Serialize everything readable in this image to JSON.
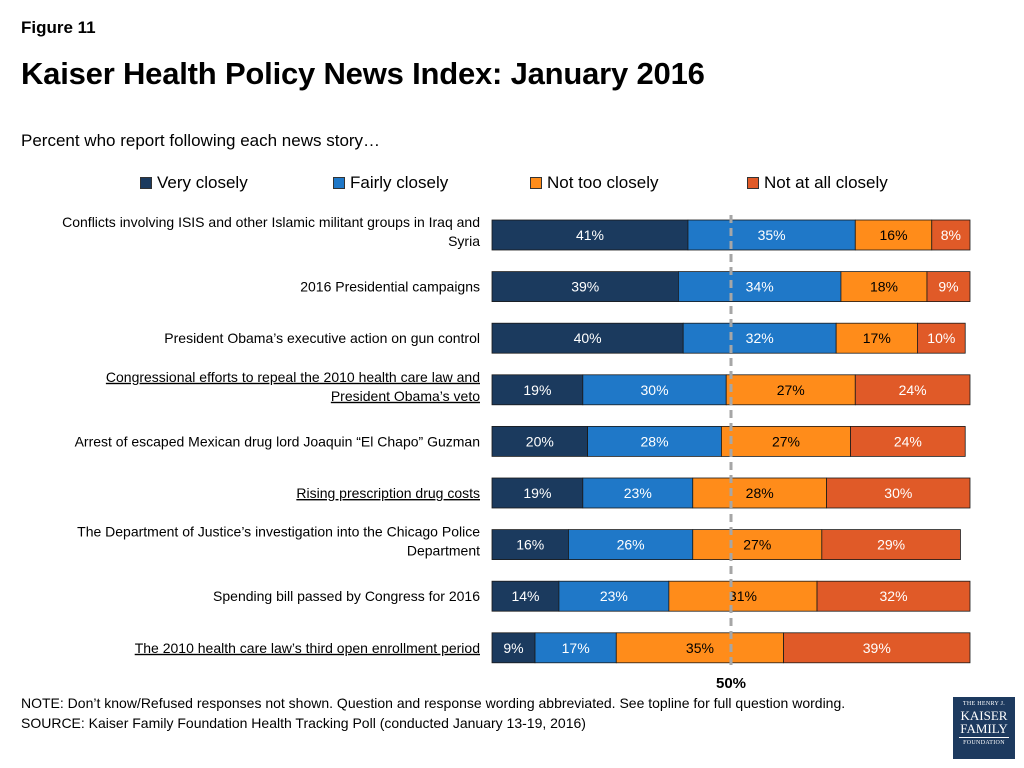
{
  "figure_label": "Figure 11",
  "note_line1": "NOTE: Don’t know/Refused responses not shown. Question and response wording abbreviated.  See topline for full question wording.",
  "source_line": "SOURCE: Kaiser Family Foundation Health Tracking Poll (conducted January 13-19, 2016)",
  "logo": {
    "line1": "THE HENRY J.",
    "line2": "KAISER",
    "line3": "FAMILY",
    "line4": "FOUNDATION"
  },
  "colors": {
    "very_closely": "#1b3a5e",
    "fairly_closely": "#1f78c8",
    "not_too_closely": "#ff8c1a",
    "not_at_all_closely": "#e05a28",
    "reference_line": "#a6a6a6"
  },
  "chart_data": {
    "type": "bar",
    "orientation": "horizontal",
    "stacked": true,
    "title": "Kaiser Health Policy News Index: January 2016",
    "subtitle": "Percent who report following each news story…",
    "xlim": [
      0,
      100
    ],
    "legend_position": "top",
    "reference_line": {
      "value": 50,
      "label": "50%"
    },
    "categories": [
      {
        "line1": "Conflicts involving ISIS and other Islamic militant groups in Iraq and",
        "line2": "Syria",
        "underlined": false
      },
      {
        "line1": "2016 Presidential campaigns",
        "line2": "",
        "underlined": false
      },
      {
        "line1": "President Obama’s executive action on gun control",
        "line2": "",
        "underlined": false
      },
      {
        "line1": "Congressional efforts to repeal the 2010 health care law and",
        "line2": "President Obama’s veto",
        "underlined": true
      },
      {
        "line1": "Arrest of escaped Mexican drug lord Joaquin “El Chapo” Guzman",
        "line2": "",
        "underlined": false
      },
      {
        "line1": "Rising prescription drug costs",
        "line2": "",
        "underlined": true
      },
      {
        "line1": "The Department of Justice’s investigation into the Chicago Police",
        "line2": "Department",
        "underlined": false
      },
      {
        "line1": "Spending bill passed by Congress for 2016",
        "line2": "",
        "underlined": false
      },
      {
        "line1": "The 2010 health care law’s third open enrollment period",
        "line2": "",
        "underlined": true
      }
    ],
    "series": [
      {
        "name": "Very closely",
        "color_key": "very_closely",
        "label_color": "#ffffff",
        "values": [
          41,
          39,
          40,
          19,
          20,
          19,
          16,
          14,
          9
        ],
        "labels": [
          "41%",
          "39%",
          "40%",
          "19%",
          "20%",
          "19%",
          "16%",
          "14%",
          "9%"
        ]
      },
      {
        "name": "Fairly closely",
        "color_key": "fairly_closely",
        "label_color": "#ffffff",
        "values": [
          35,
          34,
          32,
          30,
          28,
          23,
          26,
          23,
          17
        ],
        "labels": [
          "35%",
          "34%",
          "32%",
          "30%",
          "28%",
          "23%",
          "26%",
          "23%",
          "17%"
        ]
      },
      {
        "name": "Not too closely",
        "color_key": "not_too_closely",
        "label_color": "#000000",
        "values": [
          16,
          18,
          17,
          27,
          27,
          28,
          27,
          31,
          35
        ],
        "labels": [
          "16%",
          "18%",
          "17%",
          "27%",
          "27%",
          "28%",
          "27%",
          "31%",
          "35%"
        ]
      },
      {
        "name": "Not at all closely",
        "color_key": "not_at_all_closely",
        "label_color": "#ffffff",
        "values": [
          8,
          9,
          10,
          24,
          24,
          30,
          29,
          32,
          39
        ],
        "labels": [
          "8%",
          "9%",
          "10%",
          "24%",
          "24%",
          "30%",
          "29%",
          "32%",
          "39%"
        ]
      }
    ]
  }
}
